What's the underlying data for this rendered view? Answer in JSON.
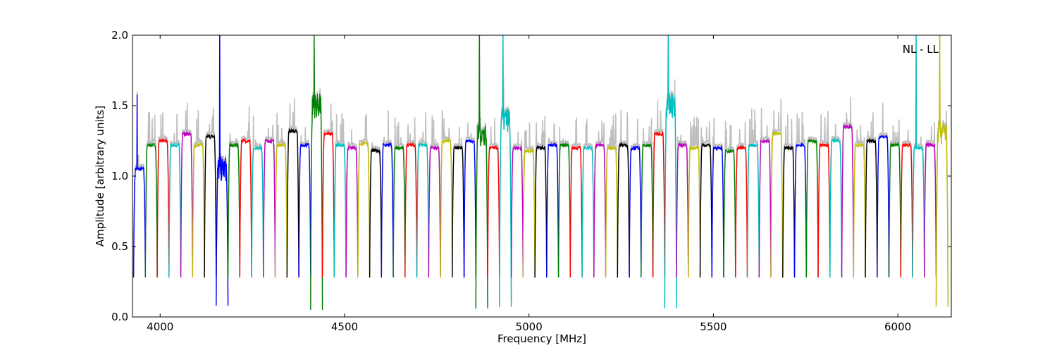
{
  "chart_data": {
    "type": "line",
    "title": "",
    "xlabel": "Frequency [MHz]",
    "ylabel": "Amplitude [arbitrary units]",
    "xlim": [
      3925,
      6145
    ],
    "ylim": [
      0.0,
      2.0
    ],
    "xticks": [
      4000,
      4500,
      5000,
      5500,
      6000
    ],
    "xtick_labels": [
      "4000",
      "4500",
      "5000",
      "5500",
      "6000"
    ],
    "yticks": [
      0.0,
      0.5,
      1.0,
      1.5,
      2.0
    ],
    "ytick_labels": [
      "0.0",
      "0.5",
      "1.0",
      "1.5",
      "2.0"
    ],
    "annotation": "NL - LL",
    "annotation_position": "top-right",
    "grid": false,
    "legend": "none",
    "background_series_color": "#bfbfbf",
    "color_cycle": [
      "#0000ff",
      "#008000",
      "#ff0000",
      "#00bfbf",
      "#bf00bf",
      "#bfbf00",
      "#000000"
    ],
    "band_width_mhz": 32,
    "band_edge_dip": 0.28,
    "bands": [
      {
        "start": 3928,
        "level": 1.05,
        "peak": 1.58
      },
      {
        "start": 3960,
        "level": 1.22
      },
      {
        "start": 3992,
        "level": 1.25
      },
      {
        "start": 4024,
        "level": 1.22
      },
      {
        "start": 4056,
        "level": 1.3
      },
      {
        "start": 4088,
        "level": 1.22
      },
      {
        "start": 4120,
        "level": 1.28
      },
      {
        "start": 4152,
        "level": 1.05,
        "noisy": true,
        "min": 0.08,
        "peak": 2.0
      },
      {
        "start": 4184,
        "level": 1.22
      },
      {
        "start": 4216,
        "level": 1.25
      },
      {
        "start": 4248,
        "level": 1.2
      },
      {
        "start": 4280,
        "level": 1.25
      },
      {
        "start": 4312,
        "level": 1.22
      },
      {
        "start": 4344,
        "level": 1.32
      },
      {
        "start": 4376,
        "level": 1.22
      },
      {
        "start": 4408,
        "level": 1.5,
        "noisy": true,
        "min": 0.05,
        "peak": 2.0
      },
      {
        "start": 4440,
        "level": 1.3
      },
      {
        "start": 4472,
        "level": 1.22
      },
      {
        "start": 4504,
        "level": 1.2
      },
      {
        "start": 4536,
        "level": 1.23
      },
      {
        "start": 4568,
        "level": 1.18
      },
      {
        "start": 4600,
        "level": 1.22
      },
      {
        "start": 4632,
        "level": 1.2
      },
      {
        "start": 4664,
        "level": 1.22
      },
      {
        "start": 4696,
        "level": 1.22
      },
      {
        "start": 4728,
        "level": 1.2
      },
      {
        "start": 4760,
        "level": 1.25
      },
      {
        "start": 4792,
        "level": 1.2
      },
      {
        "start": 4824,
        "level": 1.25
      },
      {
        "start": 4856,
        "level": 1.3,
        "noisy": true,
        "min": 0.06,
        "peak": 2.0
      },
      {
        "start": 4888,
        "level": 1.2
      },
      {
        "start": 4920,
        "level": 1.4,
        "noisy": true,
        "min": 0.07,
        "peak": 2.0
      },
      {
        "start": 4952,
        "level": 1.2
      },
      {
        "start": 4984,
        "level": 1.18
      },
      {
        "start": 5016,
        "level": 1.2
      },
      {
        "start": 5048,
        "level": 1.22
      },
      {
        "start": 5080,
        "level": 1.22
      },
      {
        "start": 5112,
        "level": 1.2
      },
      {
        "start": 5144,
        "level": 1.2
      },
      {
        "start": 5176,
        "level": 1.22
      },
      {
        "start": 5208,
        "level": 1.2
      },
      {
        "start": 5240,
        "level": 1.22
      },
      {
        "start": 5272,
        "level": 1.2
      },
      {
        "start": 5304,
        "level": 1.22
      },
      {
        "start": 5336,
        "level": 1.3
      },
      {
        "start": 5368,
        "level": 1.5,
        "noisy": true,
        "min": 0.06,
        "peak": 2.0
      },
      {
        "start": 5400,
        "level": 1.22
      },
      {
        "start": 5432,
        "level": 1.2
      },
      {
        "start": 5464,
        "level": 1.22
      },
      {
        "start": 5496,
        "level": 1.2
      },
      {
        "start": 5528,
        "level": 1.18
      },
      {
        "start": 5560,
        "level": 1.2
      },
      {
        "start": 5592,
        "level": 1.22
      },
      {
        "start": 5624,
        "level": 1.25
      },
      {
        "start": 5656,
        "level": 1.3
      },
      {
        "start": 5688,
        "level": 1.2
      },
      {
        "start": 5720,
        "level": 1.22
      },
      {
        "start": 5752,
        "level": 1.25
      },
      {
        "start": 5784,
        "level": 1.22
      },
      {
        "start": 5816,
        "level": 1.25
      },
      {
        "start": 5848,
        "level": 1.35
      },
      {
        "start": 5880,
        "level": 1.22
      },
      {
        "start": 5912,
        "level": 1.25
      },
      {
        "start": 5944,
        "level": 1.28
      },
      {
        "start": 5976,
        "level": 1.22
      },
      {
        "start": 6008,
        "level": 1.22
      },
      {
        "start": 6040,
        "level": 1.2,
        "peak": 2.0
      },
      {
        "start": 6072,
        "level": 1.22
      },
      {
        "start": 6104,
        "level": 1.3,
        "noisy": true,
        "min": 0.07,
        "peak": 2.0
      }
    ]
  }
}
